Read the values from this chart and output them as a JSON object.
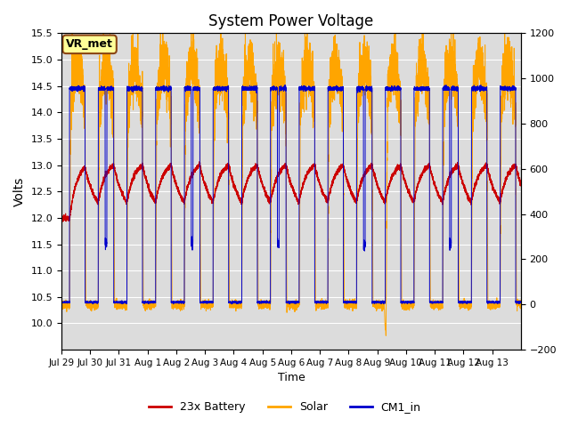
{
  "title": "System Power Voltage",
  "xlabel": "Time",
  "ylabel_left": "Volts",
  "ylabel_right": "",
  "ylim_left": [
    9.5,
    15.5
  ],
  "ylim_right": [
    -200,
    1200
  ],
  "bg_color": "#dcdcdc",
  "fig_color": "#ffffff",
  "grid_color": "#ffffff",
  "annotation_label": "VR_met",
  "annotation_box_color": "#ffff99",
  "annotation_box_edge": "#8B4513",
  "xtick_labels": [
    "Jul 29",
    "Jul 30",
    "Jul 31",
    "Aug 1",
    "Aug 2",
    "Aug 3",
    "Aug 4",
    "Aug 5",
    "Aug 6",
    "Aug 7",
    "Aug 8",
    "Aug 9",
    "Aug 10",
    "Aug 11",
    "Aug 12",
    "Aug 13"
  ],
  "ytick_left": [
    10.0,
    10.5,
    11.0,
    11.5,
    12.0,
    12.5,
    13.0,
    13.5,
    14.0,
    14.5,
    15.0,
    15.5
  ],
  "ytick_right": [
    -200,
    0,
    200,
    400,
    600,
    800,
    1000,
    1200
  ],
  "legend_labels": [
    "23x Battery",
    "Solar",
    "CM1_in"
  ],
  "legend_colors": [
    "#cc0000",
    "#FFA500",
    "#0000cc"
  ],
  "num_days": 16,
  "seed": 42
}
